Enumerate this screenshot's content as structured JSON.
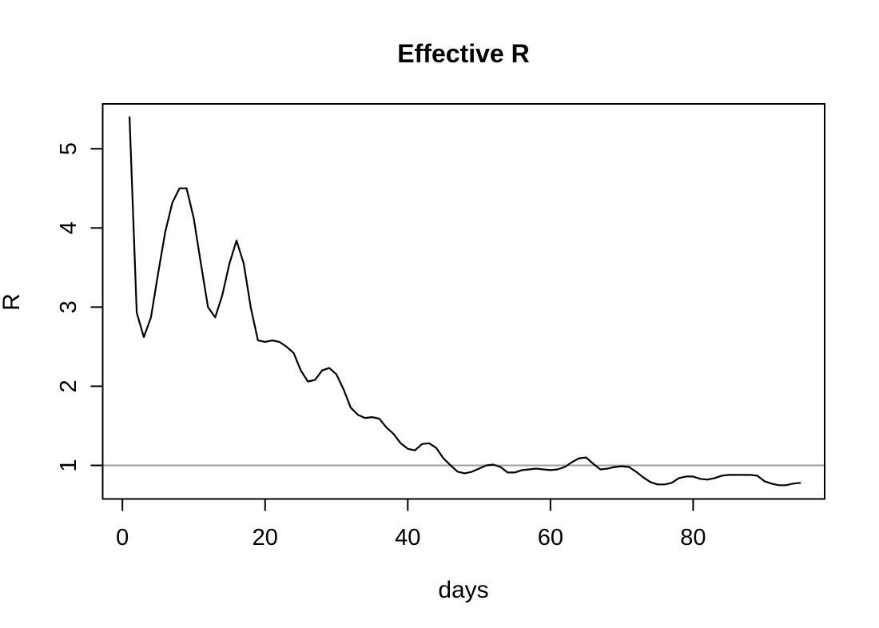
{
  "page": {
    "background": "#ffffff"
  },
  "chart_data": {
    "type": "line",
    "title": "Effective R",
    "xlabel": "days",
    "ylabel": "R",
    "x_ticks": [
      0,
      20,
      40,
      60,
      80
    ],
    "y_ticks": [
      1,
      2,
      3,
      4,
      5
    ],
    "xlim": [
      -2.7,
      98.4
    ],
    "ylim": [
      0.58,
      5.57
    ],
    "grid": false,
    "legend": false,
    "line_color": "#000000",
    "box_color": "#000000",
    "reference_line": {
      "y": 1,
      "color": "#9e9e9e"
    },
    "series": [
      {
        "name": "Effective R",
        "color": "#000000",
        "x": [
          1,
          2,
          3,
          4,
          5,
          6,
          7,
          8,
          9,
          10,
          11,
          12,
          13,
          14,
          15,
          16,
          17,
          18,
          19,
          20,
          21,
          22,
          23,
          24,
          25,
          26,
          27,
          28,
          29,
          30,
          31,
          32,
          33,
          34,
          35,
          36,
          37,
          38,
          39,
          40,
          41,
          42,
          43,
          44,
          45,
          46,
          47,
          48,
          49,
          50,
          51,
          52,
          53,
          54,
          55,
          56,
          57,
          58,
          59,
          60,
          61,
          62,
          63,
          64,
          65,
          66,
          67,
          68,
          69,
          70,
          71,
          72,
          73,
          74,
          75,
          76,
          77,
          78,
          79,
          80,
          81,
          82,
          83,
          84,
          85,
          86,
          87,
          88,
          89,
          90,
          91,
          92,
          93,
          94,
          95
        ],
        "y": [
          5.4,
          2.93,
          2.62,
          2.87,
          3.42,
          3.95,
          4.32,
          4.5,
          4.5,
          4.12,
          3.55,
          3.0,
          2.87,
          3.15,
          3.55,
          3.84,
          3.55,
          2.99,
          2.58,
          2.56,
          2.58,
          2.56,
          2.5,
          2.42,
          2.2,
          2.06,
          2.08,
          2.2,
          2.23,
          2.15,
          1.96,
          1.73,
          1.64,
          1.6,
          1.61,
          1.59,
          1.48,
          1.4,
          1.28,
          1.21,
          1.19,
          1.27,
          1.28,
          1.22,
          1.09,
          1.0,
          0.92,
          0.9,
          0.92,
          0.96,
          1.0,
          1.01,
          0.98,
          0.91,
          0.91,
          0.94,
          0.95,
          0.96,
          0.95,
          0.94,
          0.95,
          0.98,
          1.04,
          1.09,
          1.1,
          1.02,
          0.95,
          0.96,
          0.98,
          0.99,
          0.98,
          0.92,
          0.85,
          0.79,
          0.76,
          0.76,
          0.78,
          0.84,
          0.86,
          0.86,
          0.83,
          0.82,
          0.84,
          0.87,
          0.88,
          0.88,
          0.88,
          0.88,
          0.87,
          0.8,
          0.77,
          0.75,
          0.75,
          0.77,
          0.78
        ]
      }
    ]
  }
}
